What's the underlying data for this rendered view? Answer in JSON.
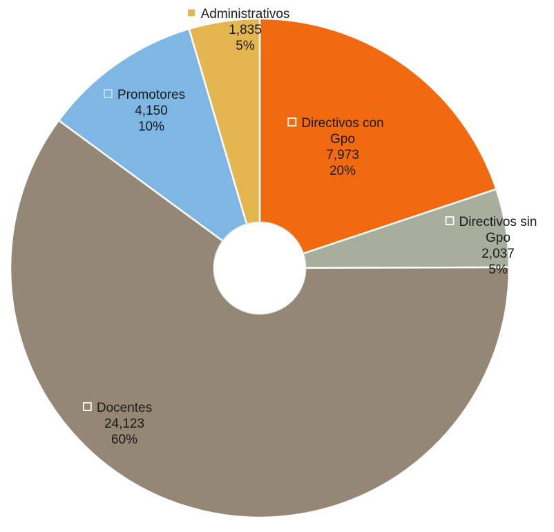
{
  "chart_data": {
    "type": "pie",
    "donut": true,
    "start_angle_deg": 0,
    "direction": "clockwise",
    "slices": [
      {
        "name_lines": [
          "Directivos con",
          "Gpo"
        ],
        "value_text": "7,973",
        "value": 7973,
        "pct_text": "20%",
        "color": "#F26A0F",
        "marker": "hollow"
      },
      {
        "name_lines": [
          "Directivos sin",
          "Gpo"
        ],
        "value_text": "2,037",
        "value": 2037,
        "pct_text": "5%",
        "color": "#A8AE9C",
        "marker": "hollow"
      },
      {
        "name_lines": [
          "Docentes"
        ],
        "value_text": "24,123",
        "value": 24123,
        "pct_text": "60%",
        "color": "#958776",
        "marker": "hollow"
      },
      {
        "name_lines": [
          "Promotores"
        ],
        "value_text": "4,150",
        "value": 4150,
        "pct_text": "10%",
        "color": "#7EB6E4",
        "marker": "filled"
      },
      {
        "name_lines": [
          "Administrativos"
        ],
        "value_text": "1,835",
        "value": 1835,
        "pct_text": "5%",
        "color": "#E4B650",
        "marker": "filled"
      }
    ]
  }
}
